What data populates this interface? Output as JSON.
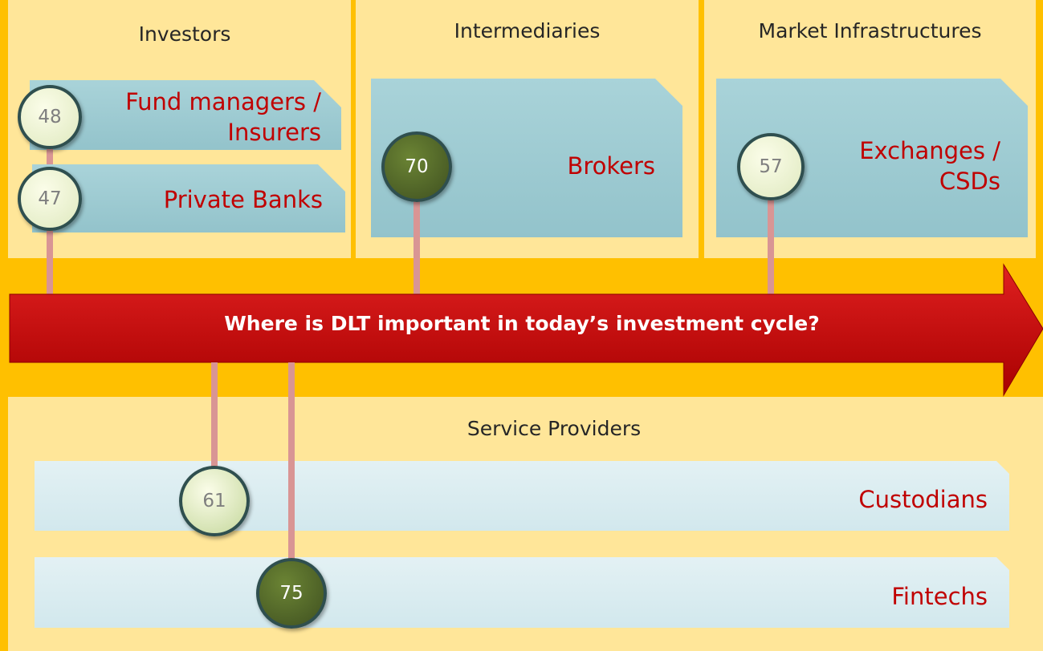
{
  "columns": [
    {
      "title": "Investors"
    },
    {
      "title": "Intermediaries"
    },
    {
      "title": "Market Infrastructures"
    }
  ],
  "banner": "Where is DLT important in today’s investment cycle?",
  "service_title": "Service Providers",
  "items": [
    {
      "label": "Fund managers / Insurers",
      "score": 48
    },
    {
      "label": "Private Banks",
      "score": 47
    },
    {
      "label": "Brokers",
      "score": 70
    },
    {
      "label": "Exchanges / CSDs",
      "score": 57
    },
    {
      "label": "Custodians",
      "score": 61
    },
    {
      "label": "Fintechs",
      "score": 75
    }
  ]
}
